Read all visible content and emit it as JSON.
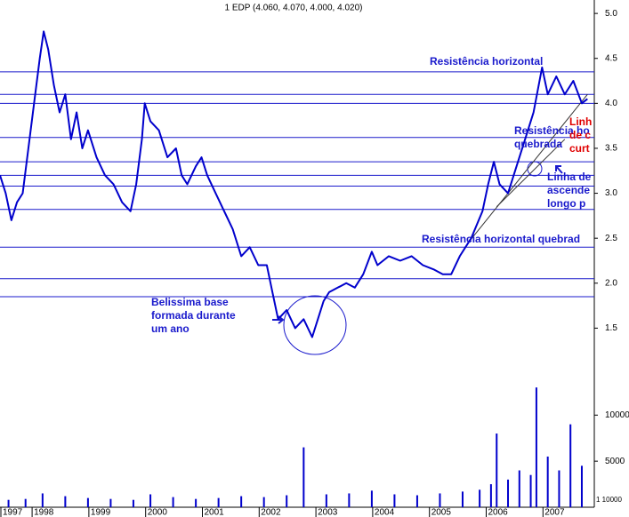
{
  "chart_data": {
    "type": "line",
    "title": "1 EDP (4.060, 4.070, 4.000, 4.020)",
    "volume_scale_label": "1 10000",
    "xlim": [
      1997.45,
      2007.92
    ],
    "xticks": [
      {
        "value": 1997.45,
        "label": "1997"
      },
      1998,
      1999,
      2000,
      2001,
      2002,
      2003,
      2004,
      2005,
      2006,
      2007
    ],
    "ylim": [
      1.0,
      5.1
    ],
    "yticks": [
      1.5,
      {
        "value": 2,
        "label": "2.0"
      },
      2.5,
      {
        "value": 3,
        "label": "3.0"
      },
      3.5,
      {
        "value": 4,
        "label": "4.0"
      },
      4.5,
      {
        "value": 5,
        "label": "5.0"
      }
    ],
    "y2lim": [
      0,
      13500
    ],
    "y2ticks": [
      5000,
      10000
    ],
    "series": [
      {
        "color": "#0000cc",
        "x": [
          1997.45,
          1997.55,
          1997.65,
          1997.75,
          1997.85,
          1997.95,
          1998.05,
          1998.15,
          1998.22,
          1998.3,
          1998.4,
          1998.5,
          1998.6,
          1998.7,
          1998.8,
          1998.9,
          1999.0,
          1999.15,
          1999.3,
          1999.45,
          1999.6,
          1999.75,
          1999.85,
          1999.95,
          2000.0,
          2000.1,
          2000.25,
          2000.4,
          2000.55,
          2000.65,
          2000.75,
          2000.9,
          2001.0,
          2001.1,
          2001.25,
          2001.4,
          2001.55,
          2001.7,
          2001.85,
          2002.0,
          2002.15,
          2002.25,
          2002.35,
          2002.5,
          2002.65,
          2002.8,
          2002.95,
          2003.05,
          2003.15,
          2003.25,
          2003.4,
          2003.55,
          2003.7,
          2003.85,
          2004.0,
          2004.1,
          2004.3,
          2004.5,
          2004.7,
          2004.9,
          2005.1,
          2005.25,
          2005.4,
          2005.55,
          2005.75,
          2005.95,
          2006.05,
          2006.15,
          2006.25,
          2006.4,
          2006.55,
          2006.7,
          2006.85,
          2007.0,
          2007.1,
          2007.25,
          2007.4,
          2007.55,
          2007.7,
          2007.8
        ],
        "values": [
          3.2,
          3.0,
          2.7,
          2.9,
          3.0,
          3.5,
          4.0,
          4.5,
          4.8,
          4.6,
          4.2,
          3.9,
          4.1,
          3.6,
          3.9,
          3.5,
          3.7,
          3.4,
          3.2,
          3.1,
          2.9,
          2.8,
          3.1,
          3.6,
          4.0,
          3.8,
          3.7,
          3.4,
          3.5,
          3.2,
          3.1,
          3.3,
          3.4,
          3.2,
          3.0,
          2.8,
          2.6,
          2.3,
          2.4,
          2.2,
          2.2,
          1.9,
          1.6,
          1.7,
          1.5,
          1.6,
          1.4,
          1.6,
          1.8,
          1.9,
          1.95,
          2.0,
          1.95,
          2.1,
          2.35,
          2.2,
          2.3,
          2.25,
          2.3,
          2.2,
          2.15,
          2.1,
          2.1,
          2.3,
          2.5,
          2.8,
          3.1,
          3.35,
          3.1,
          3.0,
          3.3,
          3.6,
          3.9,
          4.4,
          4.1,
          4.3,
          4.1,
          4.25,
          4.0,
          4.05
        ]
      },
      {
        "type": "bar",
        "axis": "y2",
        "color": "#0000cc",
        "x": [
          1997.6,
          1997.9,
          1998.2,
          1998.6,
          1999.0,
          1999.4,
          1999.8,
          2000.1,
          2000.5,
          2000.9,
          2001.3,
          2001.7,
          2002.1,
          2002.5,
          2002.8,
          2003.2,
          2003.6,
          2004.0,
          2004.4,
          2004.8,
          2005.2,
          2005.6,
          2005.9,
          2006.1,
          2006.2,
          2006.4,
          2006.6,
          2006.8,
          2006.9,
          2007.1,
          2007.3,
          2007.5,
          2007.7
        ],
        "values": [
          800,
          900,
          1500,
          1200,
          1000,
          900,
          800,
          1400,
          1100,
          900,
          1000,
          1200,
          1100,
          1300,
          6500,
          1400,
          1500,
          1800,
          1400,
          1300,
          1500,
          1700,
          1900,
          2500,
          8000,
          3000,
          4000,
          3500,
          13000,
          5500,
          4000,
          9000,
          4500
        ]
      }
    ],
    "hlines": [
      4.35,
      4.1,
      4.0,
      3.62,
      3.35,
      3.2,
      3.08,
      2.82,
      2.4,
      2.05,
      1.85
    ],
    "trendlines": [
      [
        2005.7,
        2.45,
        2007.8,
        4.1
      ],
      [
        2006.2,
        2.85,
        2007.4,
        3.6
      ]
    ],
    "annotations": [
      {
        "lines": [
          "Resistência horizontal"
        ],
        "color": "#1a1acc"
      },
      {
        "lines": [
          "Resistência ho",
          "quebrada"
        ],
        "color": "#1a1acc"
      },
      {
        "lines": [
          "Linha de",
          "ascende",
          "longo p"
        ],
        "color": "#1a1acc"
      },
      {
        "lines": [
          "Resistência horizontal quebrad"
        ],
        "color": "#1a1acc"
      },
      {
        "lines": [
          "Belissima base",
          "formada durante",
          "um ano"
        ],
        "color": "#1a1acc"
      },
      {
        "lines": [
          "Linh",
          "de c",
          "curt"
        ],
        "color": "#e00000"
      }
    ]
  }
}
